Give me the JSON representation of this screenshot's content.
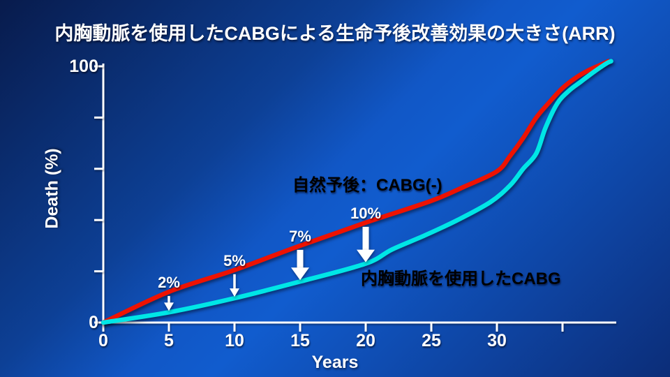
{
  "title": "内胸動脈を使用したCABGによる生命予後改善効果の大きさ(ARR)",
  "colors": {
    "background_dark": "#081b4c",
    "background_bright": "#115cce",
    "axis": "#ffffff",
    "text": "#ffffff",
    "red_curve": "#ee1200",
    "cyan_curve": "#00e6e6"
  },
  "chart_data": {
    "type": "line",
    "title": "内胸動脈を使用したCABGによる生命予後改善効果の大きさ(ARR)",
    "xlabel": "Years",
    "ylabel": "Death (%)",
    "xlim": [
      0,
      39
    ],
    "ylim": [
      0,
      100
    ],
    "grid": false,
    "x_ticks": [
      {
        "year": 0,
        "label": "0"
      },
      {
        "year": 5,
        "label": "5"
      },
      {
        "year": 10,
        "label": "10"
      },
      {
        "year": 15,
        "label": "15"
      },
      {
        "year": 20,
        "label": "20"
      },
      {
        "year": 25,
        "label": "25"
      },
      {
        "year": 30,
        "label": "30"
      },
      {
        "year": 35,
        "label": ""
      }
    ],
    "y_ticks": [
      {
        "pct": 0,
        "label": "0"
      },
      {
        "pct": 20,
        "label": ""
      },
      {
        "pct": 40,
        "label": ""
      },
      {
        "pct": 60,
        "label": ""
      },
      {
        "pct": 80,
        "label": ""
      },
      {
        "pct": 100,
        "label": "100"
      }
    ],
    "series": [
      {
        "name": "自然予後：CABG(-)",
        "color": "#ee1200",
        "points": [
          [
            0,
            0
          ],
          [
            5,
            12
          ],
          [
            10,
            20.5
          ],
          [
            15,
            30
          ],
          [
            20,
            39
          ],
          [
            25,
            47.5
          ],
          [
            27.5,
            53
          ],
          [
            30,
            59
          ],
          [
            31,
            65
          ],
          [
            32,
            72
          ],
          [
            33,
            80
          ],
          [
            34,
            86
          ],
          [
            35,
            91.5
          ],
          [
            36,
            95.5
          ],
          [
            37,
            98.5
          ],
          [
            38,
            100.8
          ],
          [
            38.5,
            102
          ]
        ]
      },
      {
        "name": "内胸動脈を使用したCABG",
        "color": "#00e6e6",
        "points": [
          [
            0,
            0
          ],
          [
            5,
            4
          ],
          [
            10,
            9.5
          ],
          [
            15,
            16
          ],
          [
            20,
            23
          ],
          [
            22,
            28.5
          ],
          [
            24.5,
            34
          ],
          [
            27,
            40
          ],
          [
            29.5,
            47
          ],
          [
            31,
            53.5
          ],
          [
            32,
            60
          ],
          [
            33,
            66
          ],
          [
            33.7,
            76
          ],
          [
            34.6,
            85.5
          ],
          [
            35.5,
            90.5
          ],
          [
            36.4,
            94
          ],
          [
            37.3,
            97.5
          ],
          [
            38.3,
            101
          ],
          [
            38.7,
            102
          ]
        ]
      }
    ],
    "annotations": [
      {
        "label": "2%",
        "year": 5,
        "size": "small"
      },
      {
        "label": "5%",
        "year": 10,
        "size": "small"
      },
      {
        "label": "7%",
        "year": 15,
        "size": "large"
      },
      {
        "label": "10%",
        "year": 20,
        "size": "large"
      }
    ]
  }
}
